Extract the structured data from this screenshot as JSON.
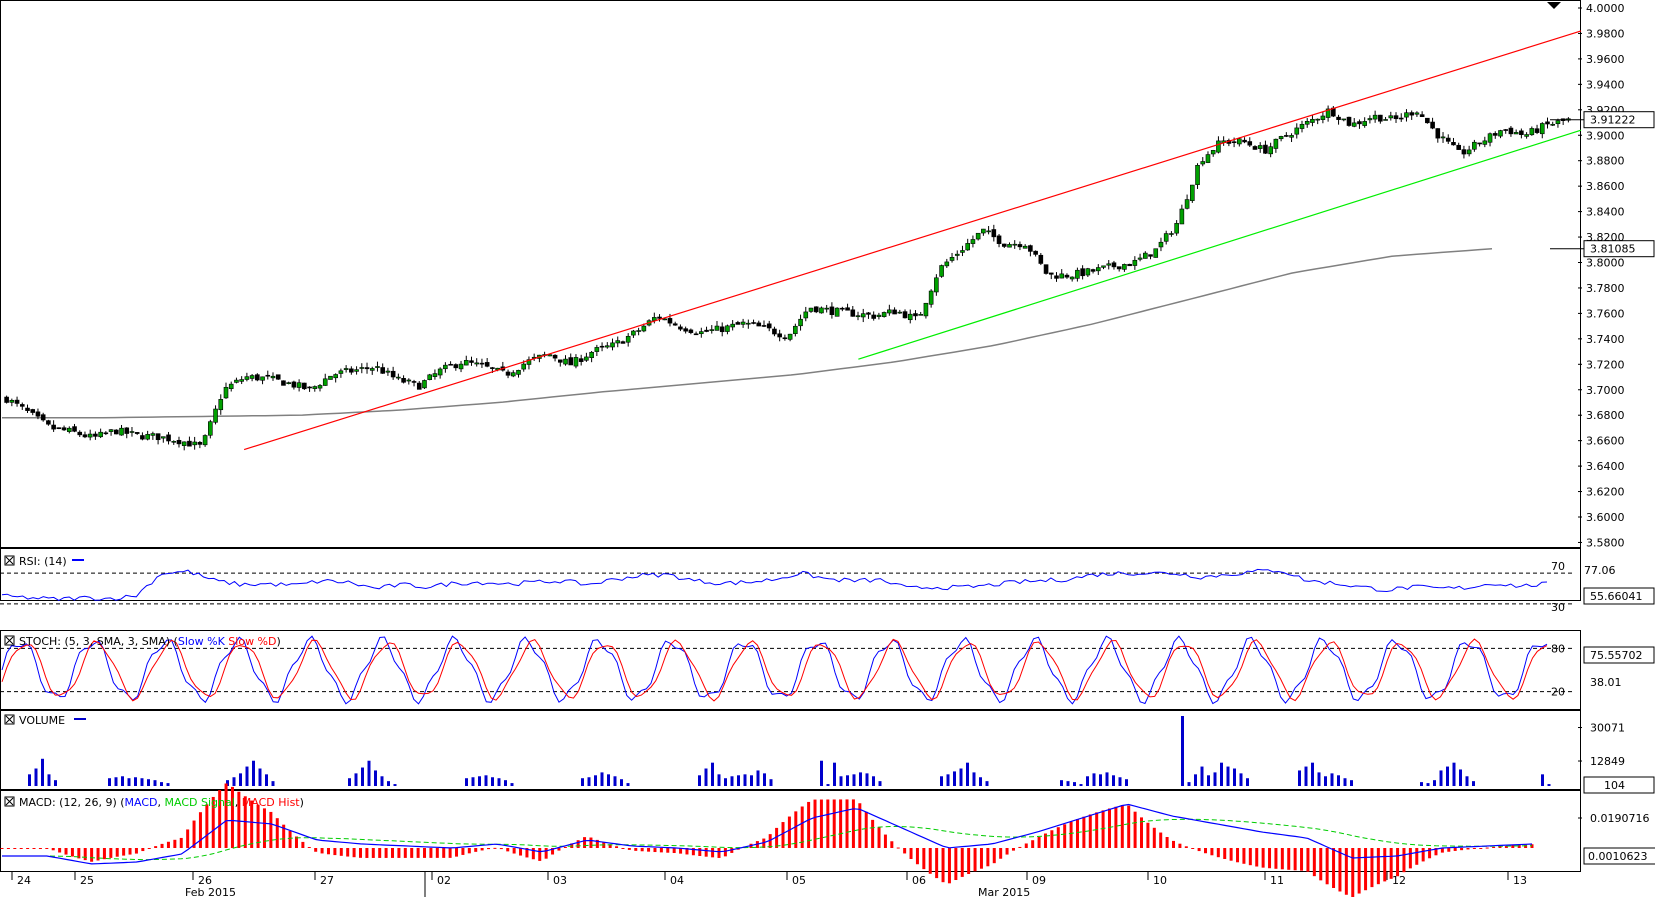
{
  "chart_data": [
    {
      "type": "candlestick",
      "ylim": [
        3.578,
        4.0
      ],
      "yticks": [
        "4.0000",
        "3.9800",
        "3.9600",
        "3.9400",
        "3.9200",
        "3.9000",
        "3.8800",
        "3.8600",
        "3.8400",
        "3.8200",
        "3.8000",
        "3.7800",
        "3.7600",
        "3.7400",
        "3.7200",
        "3.7000",
        "3.6800",
        "3.6600",
        "3.6400",
        "3.6200",
        "3.6000",
        "3.5800"
      ],
      "last_price": 3.91222,
      "last_price_label": "3.91222",
      "moving_average_last": 3.81085,
      "moving_average_label": "3.81085",
      "x_day_labels": [
        "24",
        "25",
        "26",
        "27",
        "02",
        "03",
        "04",
        "05",
        "06",
        "09",
        "10",
        "11",
        "12",
        "13"
      ],
      "x_month_labels": [
        "Feb 2015",
        "Mar 2015"
      ],
      "trend_lines": [
        {
          "name": "upper channel",
          "color": "#ff0000",
          "from": [
            0.155,
            3.653
          ],
          "to": [
            1.0,
            3.982
          ]
        },
        {
          "name": "lower channel",
          "color": "#00ee00",
          "from": [
            0.545,
            3.724
          ],
          "to": [
            1.0,
            3.904
          ]
        }
      ],
      "key_closes": [
        3.693,
        3.682,
        3.67,
        3.667,
        3.662,
        3.668,
        3.664,
        3.663,
        3.66,
        3.655,
        3.7,
        3.71,
        3.709,
        3.705,
        3.7,
        3.712,
        3.715,
        3.718,
        3.708,
        3.703,
        3.715,
        3.722,
        3.718,
        3.712,
        3.722,
        3.728,
        3.72,
        3.73,
        3.735,
        3.745,
        3.758,
        3.75,
        3.745,
        3.748,
        3.752,
        3.748,
        3.742,
        3.765,
        3.762,
        3.76,
        3.758,
        3.762,
        3.755,
        3.795,
        3.81,
        3.825,
        3.815,
        3.815,
        3.79,
        3.79,
        3.793,
        3.797,
        3.8,
        3.81,
        3.832,
        3.88,
        3.895,
        3.895,
        3.888,
        3.9,
        3.91,
        3.92,
        3.908,
        3.915,
        3.912,
        3.92,
        3.9,
        3.885,
        3.895,
        3.905,
        3.9,
        3.908,
        3.912
      ]
    },
    {
      "type": "line",
      "name": "RSI",
      "legend": "RSI: (14)",
      "ylim": [
        0,
        100
      ],
      "levels": [
        "70",
        "30"
      ],
      "level_values": [
        70,
        30
      ],
      "last_value_label": "55.66041",
      "mid_label": "77.06",
      "key_values": [
        40,
        38,
        36,
        38,
        37,
        40,
        70,
        72,
        60,
        55,
        56,
        54,
        60,
        58,
        50,
        55,
        52,
        57,
        58,
        56,
        58,
        60,
        55,
        62,
        67,
        68,
        60,
        57,
        58,
        62,
        70,
        62,
        60,
        61,
        50,
        52,
        51,
        54,
        58,
        60,
        62,
        68,
        70,
        70,
        70,
        65,
        68,
        72,
        74,
        60,
        57,
        52,
        48,
        52,
        50,
        51,
        57,
        53,
        56
      ]
    },
    {
      "type": "line",
      "name": "STOCH",
      "legend": "STOCH: (5, 3, SMA, 3, SMA)",
      "series_names": [
        "Slow %K",
        "Slow %D"
      ],
      "ylim": [
        0,
        100
      ],
      "levels": [
        "80",
        "20"
      ],
      "level_values": [
        80,
        20
      ],
      "last_value_label": "75.55702",
      "mid_label": "38.01"
    },
    {
      "type": "bar",
      "name": "VOLUME",
      "legend": "VOLUME",
      "yticks": [
        "30071",
        "12849"
      ],
      "ytick_values": [
        30071,
        12849
      ],
      "last_value_label": "104",
      "peak": 36000,
      "days": [
        {
          "day": "24",
          "values": [
            6000,
            9000,
            14000,
            6000,
            3000
          ]
        },
        {
          "day": "25",
          "values": [
            4000,
            4500,
            5000,
            4000,
            4500,
            4000,
            3500,
            3000,
            2000,
            1500
          ]
        },
        {
          "day": "26",
          "values": [
            3000,
            4500,
            6500,
            10000,
            13000,
            9000,
            6000,
            2500
          ]
        },
        {
          "day": "27",
          "values": [
            4000,
            6500,
            9500,
            13000,
            8000,
            5000,
            2500,
            1000
          ]
        },
        {
          "day": "02",
          "values": [
            4000,
            4500,
            5000,
            5500,
            4500,
            4000,
            3000,
            1500
          ]
        },
        {
          "day": "03",
          "values": [
            4000,
            4500,
            5500,
            7000,
            6000,
            5000,
            3500,
            1500
          ]
        },
        {
          "day": "04",
          "values": [
            5500,
            9000,
            12000,
            6000,
            4000,
            5000,
            5500,
            6000,
            5500,
            8000,
            6500,
            3500
          ]
        },
        {
          "day": "05",
          "values": [
            13000,
            1000,
            12000,
            5000,
            5500,
            6000,
            7000,
            6500,
            5000,
            2500
          ]
        },
        {
          "day": "06",
          "values": [
            5000,
            6000,
            7500,
            9000,
            12000,
            7000,
            4500,
            2500
          ]
        },
        {
          "day": "09",
          "values": [
            3000,
            2500,
            2000,
            1000,
            5000,
            6500,
            6000,
            7000,
            5500,
            4500,
            3500
          ]
        },
        {
          "day": "10",
          "values": [
            36000,
            2000,
            6000,
            10000,
            5500,
            7000,
            12000,
            10000,
            9000,
            6500,
            4000
          ]
        },
        {
          "day": "11",
          "values": [
            8000,
            10000,
            12000,
            7000,
            5000,
            6500,
            5500,
            4000,
            3000
          ]
        },
        {
          "day": "12",
          "values": [
            2000,
            1500,
            3000,
            8000,
            10000,
            12000,
            8500,
            5000,
            2500
          ]
        },
        {
          "day": "13",
          "values": [
            6000,
            1000
          ]
        }
      ]
    },
    {
      "type": "line",
      "name": "MACD",
      "legend": "MACD: (12, 26, 9)",
      "series_names": [
        "MACD",
        "MACD Signal",
        "MACD Hist"
      ],
      "ytick": "0.0190716",
      "last_value_label": "0.0010623",
      "macd_key_values": [
        -0.004,
        -0.004,
        -0.008,
        -0.007,
        -0.003,
        0.014,
        0.012,
        0.004,
        0.002,
        0.001,
        0.0,
        0.002,
        -0.002,
        0.004,
        0.001,
        0.0,
        -0.002,
        0.003,
        0.015,
        0.02,
        0.01,
        0.0,
        0.002,
        0.008,
        0.015,
        0.022,
        0.016,
        0.012,
        0.008,
        0.005,
        -0.005,
        -0.004,
        0.0,
        0.001,
        0.002
      ]
    }
  ],
  "panels": {
    "rsi": {
      "legend": "RSI: (14)"
    },
    "stoch": {
      "legend_prefix": "STOCH: (5, 3, SMA, 3, SMA) (",
      "k_label": "Slow %K",
      "d_label": "Slow %D",
      "legend_suffix": ")"
    },
    "volume": {
      "legend": "VOLUME"
    },
    "macd": {
      "legend_prefix": "MACD: (12, 26, 9) (",
      "macd_label": "MACD",
      "signal_label": "MACD Signal",
      "hist_label": "MACD Hist",
      "legend_suffix": ")"
    }
  },
  "colors": {
    "bull_candle": "#00a000",
    "bear_candle": "#000000",
    "moving_average": "#808080",
    "upper_channel": "#ff0000",
    "lower_channel": "#00ee00",
    "rsi": "#0000ff",
    "stoch_k": "#0000ff",
    "stoch_d": "#ff0000",
    "volume": "#0000cc",
    "macd": "#0000ff",
    "macd_signal": "#00cc00",
    "macd_hist": "#ff0000"
  }
}
